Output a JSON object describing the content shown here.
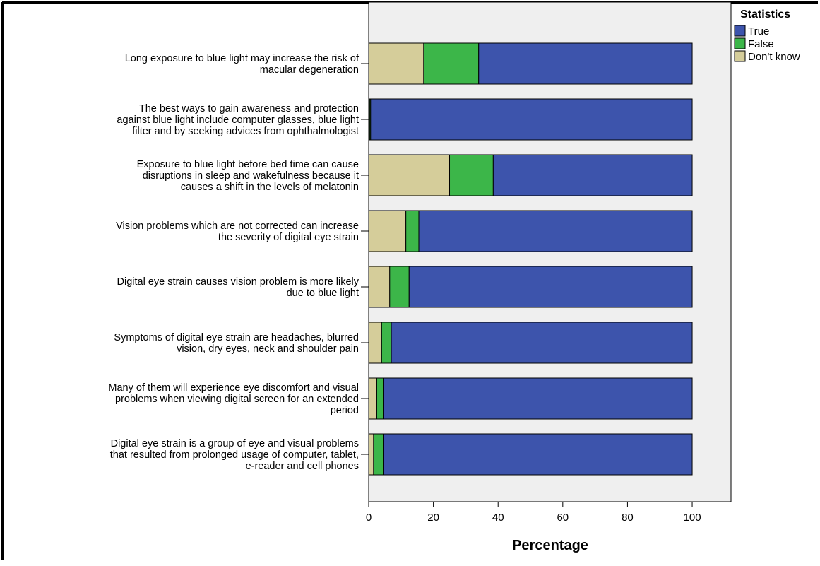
{
  "chart_data": {
    "type": "bar",
    "orientation": "horizontal",
    "stacked": true,
    "categories": [
      [
        "Long exposure to blue light may increase the risk of",
        "macular degeneration"
      ],
      [
        "The best ways to gain awareness and protection",
        "against blue light include computer glasses, blue light",
        "filter and by seeking advices from ophthalmologist"
      ],
      [
        "Exposure to blue light before bed time can cause",
        "disruptions in sleep and wakefulness because it",
        "causes a shift in the levels of melatonin"
      ],
      [
        "Vision problems which are not corrected can increase",
        "the severity of digital eye strain"
      ],
      [
        "Digital eye strain causes vision problem is more likely",
        "due to blue light"
      ],
      [
        "Symptoms of digital eye strain are headaches, blurred",
        "vision, dry eyes, neck and shoulder pain"
      ],
      [
        "Many of them will experience eye discomfort and visual",
        "problems when viewing digital screen for an extended",
        "period"
      ],
      [
        "Digital eye strain is a group of eye and visual problems",
        "that resulted from prolonged usage of computer, tablet,",
        "e-reader and cell phones"
      ]
    ],
    "series": [
      {
        "name": "Don't know",
        "color": "#d5cd9a",
        "values": [
          17.0,
          0.3,
          25.0,
          11.5,
          6.5,
          4.0,
          2.5,
          1.5
        ]
      },
      {
        "name": "False",
        "color": "#3cb649",
        "values": [
          17.0,
          0.3,
          13.5,
          4.0,
          6.0,
          3.0,
          2.0,
          3.0
        ]
      },
      {
        "name": "True",
        "color": "#3d54ac",
        "values": [
          66.0,
          99.4,
          61.5,
          84.5,
          87.5,
          93.0,
          95.5,
          95.5
        ]
      }
    ],
    "legend_order": [
      "True",
      "False",
      "Don't know"
    ],
    "xlabel": "Percentage",
    "xlim": [
      0,
      112
    ],
    "xticks": [
      0,
      20,
      40,
      60,
      80,
      100
    ],
    "legend_title": "Statistics",
    "legend_position": "top-right",
    "grid": false,
    "plot_background": "#efefef"
  }
}
